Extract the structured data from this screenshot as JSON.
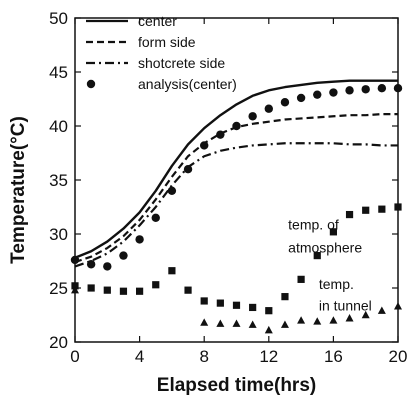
{
  "chart_data": {
    "type": "line",
    "xlabel": "Elapsed time(hrs)",
    "ylabel": "Temperature(°C)",
    "xlim": [
      0,
      20
    ],
    "ylim": [
      20,
      50
    ],
    "x_ticks": [
      "0",
      "4",
      "8",
      "12",
      "16",
      "20"
    ],
    "y_ticks": [
      "20",
      "25",
      "30",
      "35",
      "40",
      "45",
      "50"
    ],
    "grid": false,
    "legend_position": "top-left",
    "series": [
      {
        "name": "center",
        "style": "solid",
        "x": [
          0,
          1,
          2,
          3,
          4,
          5,
          6,
          7,
          8,
          9,
          10,
          11,
          12,
          13,
          14,
          15,
          16,
          17,
          18,
          19,
          20
        ],
        "y": [
          27.8,
          28.4,
          29.3,
          30.5,
          32.0,
          34.0,
          36.3,
          38.3,
          39.8,
          41.0,
          42.0,
          42.8,
          43.3,
          43.6,
          43.8,
          44.0,
          44.1,
          44.2,
          44.2,
          44.2,
          44.2
        ]
      },
      {
        "name": "form side",
        "style": "dashed",
        "x": [
          0,
          1,
          2,
          3,
          4,
          5,
          6,
          7,
          8,
          9,
          10,
          11,
          12,
          13,
          14,
          15,
          16,
          17,
          18,
          19,
          20
        ],
        "y": [
          27.4,
          27.9,
          28.7,
          29.8,
          31.3,
          33.2,
          35.3,
          37.2,
          38.4,
          39.3,
          39.9,
          40.2,
          40.4,
          40.6,
          40.7,
          40.8,
          40.9,
          41.0,
          41.0,
          41.1,
          41.1
        ]
      },
      {
        "name": "shotcrete side",
        "style": "dashdot",
        "x": [
          0,
          1,
          2,
          3,
          4,
          5,
          6,
          7,
          8,
          9,
          10,
          11,
          12,
          13,
          14,
          15,
          16,
          17,
          18,
          19,
          20
        ],
        "y": [
          27.0,
          27.5,
          28.2,
          29.3,
          30.8,
          32.5,
          34.5,
          36.2,
          37.2,
          37.7,
          38.0,
          38.2,
          38.3,
          38.4,
          38.4,
          38.4,
          38.4,
          38.3,
          38.3,
          38.2,
          38.2
        ]
      },
      {
        "name": "analysis(center)",
        "style": "circle",
        "x": [
          0,
          1,
          2,
          3,
          4,
          5,
          6,
          7,
          8,
          9,
          10,
          11,
          12,
          13,
          14,
          15,
          16,
          17,
          18,
          19,
          20
        ],
        "y": [
          27.6,
          27.2,
          27.0,
          28.0,
          29.5,
          31.5,
          34.0,
          36.0,
          38.2,
          39.2,
          40.0,
          40.9,
          41.6,
          42.2,
          42.6,
          42.9,
          43.1,
          43.3,
          43.4,
          43.5,
          43.5
        ]
      },
      {
        "name": "",
        "style": "square",
        "x": [
          0,
          1,
          2,
          3,
          4,
          5,
          6,
          7,
          8,
          9,
          10,
          11,
          12,
          13,
          14,
          15,
          16,
          17,
          18,
          19,
          20
        ],
        "y": [
          25.2,
          25.0,
          24.8,
          24.7,
          24.7,
          25.3,
          26.6,
          24.8,
          23.8,
          23.6,
          23.4,
          23.2,
          22.9,
          24.2,
          25.8,
          28.0,
          30.2,
          31.8,
          32.2,
          32.3,
          32.5
        ]
      },
      {
        "name": "",
        "style": "triangle",
        "x": [
          0,
          8,
          9,
          10,
          11,
          12,
          13,
          14,
          15,
          16,
          17,
          18,
          19,
          20
        ],
        "y": [
          24.8,
          21.8,
          21.7,
          21.7,
          21.6,
          21.1,
          21.6,
          22.0,
          21.9,
          22.0,
          22.2,
          22.5,
          22.9,
          23.3
        ]
      }
    ],
    "annotations": [
      {
        "text": "temp. of",
        "x": 13.2,
        "y": 30.4
      },
      {
        "text": "atmosphere",
        "x": 13.2,
        "y": 28.3
      },
      {
        "text": "temp.",
        "x": 15.1,
        "y": 24.9
      },
      {
        "text": "in tunnel",
        "x": 15.1,
        "y": 22.9
      }
    ],
    "colors": {
      "ink": "#111111"
    }
  }
}
